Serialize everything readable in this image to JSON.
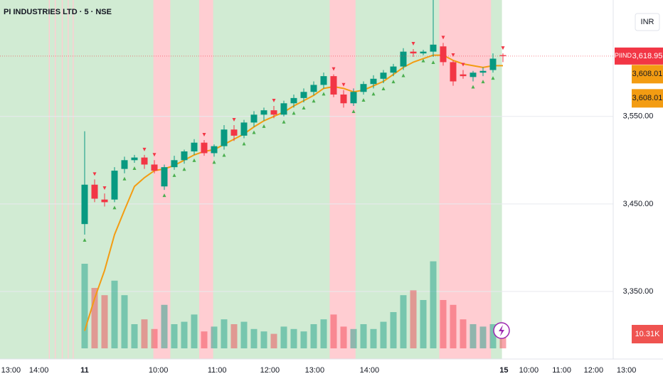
{
  "chart_data": {
    "type": "candlestick",
    "title": "PI INDUSTRIES LTD · 5 · NSE",
    "currency": "INR",
    "symbol": "PIIND",
    "up_color": "#089981",
    "down_color": "#f23645",
    "candles": {
      "open": [
        3427,
        3472,
        3455,
        3455,
        3490,
        3500,
        3503,
        3495,
        3470,
        3492,
        3500,
        3510,
        3520,
        3508,
        3516,
        3535,
        3528,
        3543,
        3552,
        3557,
        3552,
        3565,
        3571,
        3578,
        3586,
        3596,
        3575,
        3565,
        3578,
        3587,
        3593,
        3600,
        3607,
        3624,
        3622,
        3624,
        3630,
        3612,
        3598,
        3595,
        3600,
        3603,
        3620
      ],
      "high": [
        3533,
        3478,
        3462,
        3492,
        3504,
        3506,
        3506,
        3500,
        3495,
        3505,
        3512,
        3524,
        3523,
        3518,
        3540,
        3540,
        3546,
        3556,
        3560,
        3562,
        3568,
        3575,
        3582,
        3590,
        3600,
        3598,
        3580,
        3582,
        3590,
        3597,
        3603,
        3610,
        3628,
        3627,
        3626,
        3683,
        3634,
        3614,
        3603,
        3602,
        3606,
        3622,
        3622
      ],
      "low": [
        3415,
        3452,
        3447,
        3452,
        3485,
        3497,
        3490,
        3485,
        3466,
        3489,
        3496,
        3506,
        3505,
        3504,
        3512,
        3522,
        3525,
        3538,
        3545,
        3548,
        3550,
        3560,
        3566,
        3574,
        3582,
        3572,
        3560,
        3562,
        3575,
        3582,
        3588,
        3596,
        3603,
        3618,
        3620,
        3618,
        3608,
        3585,
        3593,
        3590,
        3596,
        3600,
        3612
      ],
      "close": [
        3472,
        3456,
        3452,
        3488,
        3500,
        3503,
        3495,
        3488,
        3492,
        3500,
        3510,
        3520,
        3508,
        3516,
        3535,
        3528,
        3543,
        3552,
        3557,
        3552,
        3565,
        3571,
        3578,
        3586,
        3596,
        3575,
        3565,
        3578,
        3587,
        3593,
        3600,
        3607,
        3624,
        3622,
        3624,
        3632,
        3612,
        3590,
        3596,
        3600,
        3602,
        3616,
        3618.95
      ]
    },
    "volume": [
      35,
      25,
      22,
      28,
      22,
      10,
      12,
      8,
      18,
      10,
      11,
      14,
      7,
      9,
      12,
      10,
      11,
      8,
      7,
      6,
      9,
      8,
      7,
      10,
      12,
      14,
      9,
      8,
      10,
      8,
      11,
      15,
      22,
      24,
      20,
      36,
      20,
      18,
      12,
      10,
      9,
      10,
      10.31
    ],
    "volume_label": {
      "value": 10.31,
      "label": "10.31K"
    },
    "last_price": {
      "value": 3618.95,
      "label": "3,618.95"
    },
    "ema": {
      "color": "#f39c12",
      "values": [
        3305,
        3342,
        3374,
        3415,
        3443,
        3470,
        3480,
        3488,
        3490,
        3494,
        3500,
        3506,
        3510,
        3512,
        3518,
        3524,
        3530,
        3538,
        3545,
        3550,
        3555,
        3562,
        3568,
        3574,
        3582,
        3584,
        3582,
        3578,
        3580,
        3585,
        3590,
        3598,
        3606,
        3612,
        3616,
        3620,
        3620,
        3614,
        3610,
        3608,
        3606,
        3608,
        3608
      ]
    },
    "ema_labels": [
      {
        "value": 3608.01,
        "label": "3,608.01"
      },
      {
        "value": 3608.01,
        "label": "3,608.01"
      }
    ],
    "bands": [
      {
        "from": -8.5,
        "to": 41.9,
        "color": "#d1ebd3"
      },
      {
        "from": -3.6,
        "to": -3.5,
        "color": "#ffcdd2"
      },
      {
        "from": -3.0,
        "to": -2.9,
        "color": "#ffcdd2"
      },
      {
        "from": -2.3,
        "to": -2.2,
        "color": "#ffcdd2"
      },
      {
        "from": -1.7,
        "to": -1.6,
        "color": "#ffcdd2"
      },
      {
        "from": -1.2,
        "to": -1.1,
        "color": "#ffcdd2"
      },
      {
        "from": 6.9,
        "to": 8.6,
        "color": "#ffcdd2"
      },
      {
        "from": 11.5,
        "to": 12.9,
        "color": "#ffcdd2"
      },
      {
        "from": 24.6,
        "to": 27.2,
        "color": "#ffcdd2"
      },
      {
        "from": 35.6,
        "to": 40.8,
        "color": "#ffcdd2"
      }
    ],
    "xlim": [
      -8.5,
      58
    ],
    "xticks": [
      {
        "value": -7.4,
        "label": "13:00"
      },
      {
        "value": -4.6,
        "label": "14:00"
      },
      {
        "value": 0,
        "label": "11"
      },
      {
        "value": 7.4,
        "label": "10:00"
      },
      {
        "value": 13.3,
        "label": "11:00"
      },
      {
        "value": 18.6,
        "label": "12:00"
      },
      {
        "value": 23.1,
        "label": "13:00"
      },
      {
        "value": 28.6,
        "label": "14:00"
      },
      {
        "value": 42.1,
        "label": "15"
      },
      {
        "value": 44.6,
        "label": "10:00"
      },
      {
        "value": 47.9,
        "label": "11:00"
      },
      {
        "value": 51.1,
        "label": "12:00"
      },
      {
        "value": 54.4,
        "label": "13:00"
      }
    ],
    "ylim": [
      3285,
      3683
    ],
    "yticks": [
      {
        "value": 3350,
        "label": "3,350.00"
      },
      {
        "value": 3450,
        "label": "3,450.00"
      },
      {
        "value": 3550,
        "label": "3,550.00"
      }
    ],
    "grid": true
  }
}
